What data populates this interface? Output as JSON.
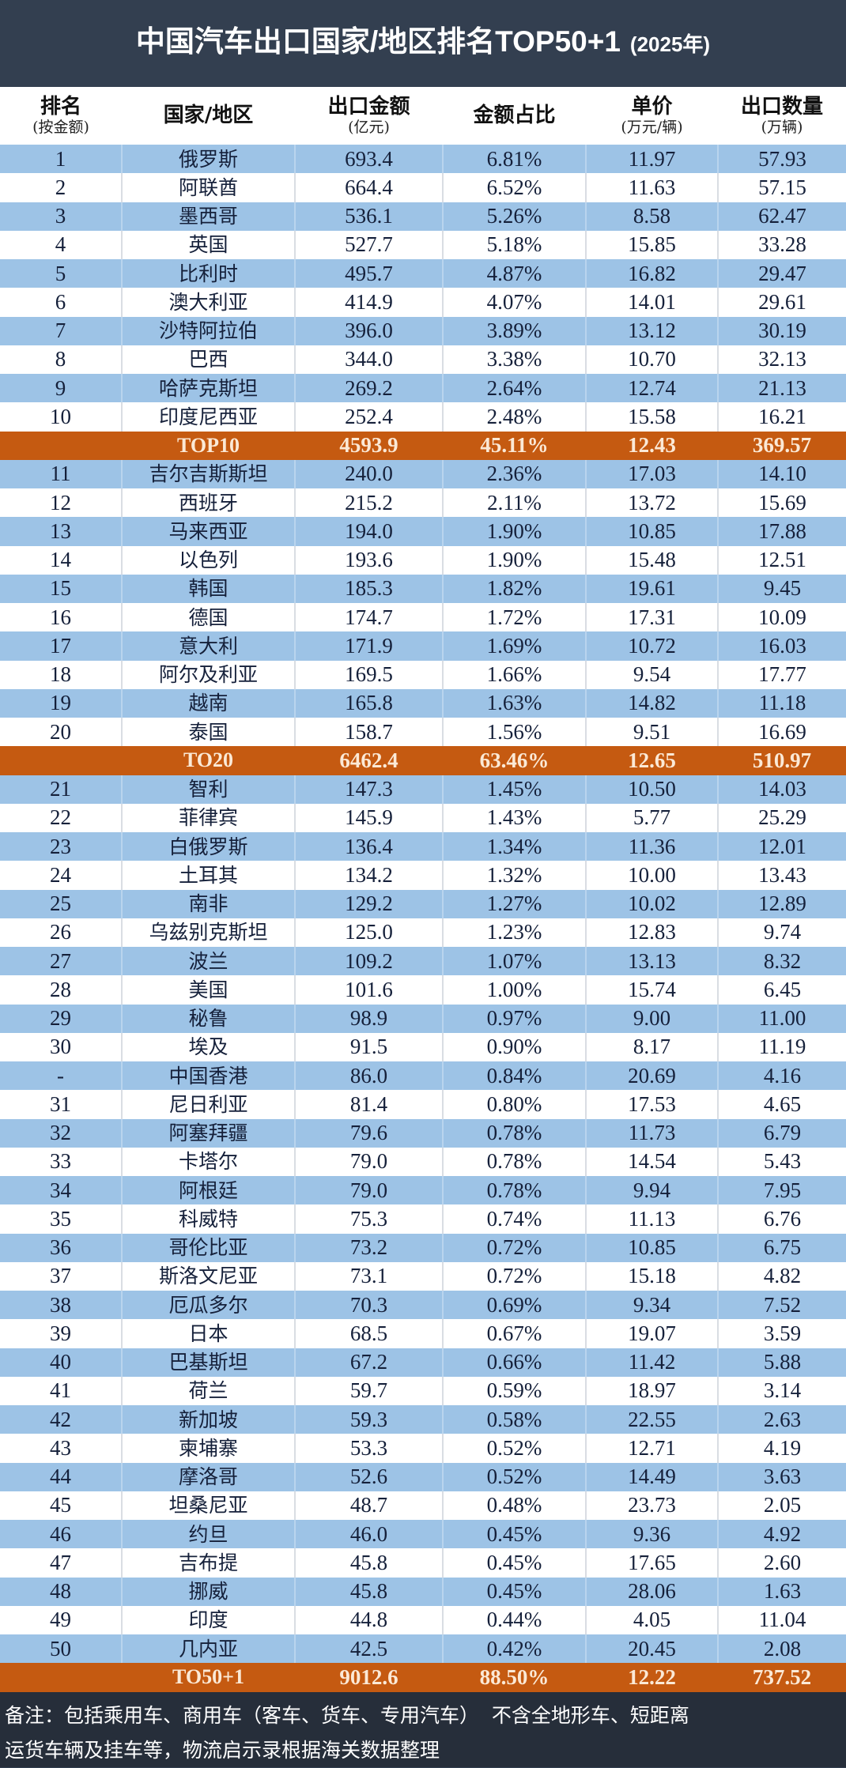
{
  "title": "中国汽车出口国家/地区排名TOP50+1",
  "title_year": "(2025年)",
  "colors": {
    "header_band": "#333f50",
    "row_blue": "#9dc3e6",
    "row_white": "#ffffff",
    "summary_orange": "#c55a11",
    "footer": "#262e3a"
  },
  "columns": [
    {
      "label": "排名",
      "sub": "(按金额)"
    },
    {
      "label": "国家/地区",
      "sub": ""
    },
    {
      "label": "出口金额",
      "sub": "(亿元)"
    },
    {
      "label": "金额占比",
      "sub": ""
    },
    {
      "label": "单价",
      "sub": "(万元/辆)"
    },
    {
      "label": "出口数量",
      "sub": "(万辆)"
    }
  ],
  "rows": [
    {
      "rank": "1",
      "name": "俄罗斯",
      "amount": "693.4",
      "share": "6.81%",
      "price": "11.97",
      "qty": "57.93"
    },
    {
      "rank": "2",
      "name": "阿联酋",
      "amount": "664.4",
      "share": "6.52%",
      "price": "11.63",
      "qty": "57.15"
    },
    {
      "rank": "3",
      "name": "墨西哥",
      "amount": "536.1",
      "share": "5.26%",
      "price": "8.58",
      "qty": "62.47"
    },
    {
      "rank": "4",
      "name": "英国",
      "amount": "527.7",
      "share": "5.18%",
      "price": "15.85",
      "qty": "33.28"
    },
    {
      "rank": "5",
      "name": "比利时",
      "amount": "495.7",
      "share": "4.87%",
      "price": "16.82",
      "qty": "29.47"
    },
    {
      "rank": "6",
      "name": "澳大利亚",
      "amount": "414.9",
      "share": "4.07%",
      "price": "14.01",
      "qty": "29.61"
    },
    {
      "rank": "7",
      "name": "沙特阿拉伯",
      "amount": "396.0",
      "share": "3.89%",
      "price": "13.12",
      "qty": "30.19"
    },
    {
      "rank": "8",
      "name": "巴西",
      "amount": "344.0",
      "share": "3.38%",
      "price": "10.70",
      "qty": "32.13"
    },
    {
      "rank": "9",
      "name": "哈萨克斯坦",
      "amount": "269.2",
      "share": "2.64%",
      "price": "12.74",
      "qty": "21.13"
    },
    {
      "rank": "10",
      "name": "印度尼西亚",
      "amount": "252.4",
      "share": "2.48%",
      "price": "15.58",
      "qty": "16.21"
    },
    {
      "summary": true,
      "rank": "",
      "name": "TOP10",
      "amount": "4593.9",
      "share": "45.11%",
      "price": "12.43",
      "qty": "369.57"
    },
    {
      "rank": "11",
      "name": "吉尔吉斯斯坦",
      "amount": "240.0",
      "share": "2.36%",
      "price": "17.03",
      "qty": "14.10"
    },
    {
      "rank": "12",
      "name": "西班牙",
      "amount": "215.2",
      "share": "2.11%",
      "price": "13.72",
      "qty": "15.69"
    },
    {
      "rank": "13",
      "name": "马来西亚",
      "amount": "194.0",
      "share": "1.90%",
      "price": "10.85",
      "qty": "17.88"
    },
    {
      "rank": "14",
      "name": "以色列",
      "amount": "193.6",
      "share": "1.90%",
      "price": "15.48",
      "qty": "12.51"
    },
    {
      "rank": "15",
      "name": "韩国",
      "amount": "185.3",
      "share": "1.82%",
      "price": "19.61",
      "qty": "9.45"
    },
    {
      "rank": "16",
      "name": "德国",
      "amount": "174.7",
      "share": "1.72%",
      "price": "17.31",
      "qty": "10.09"
    },
    {
      "rank": "17",
      "name": "意大利",
      "amount": "171.9",
      "share": "1.69%",
      "price": "10.72",
      "qty": "16.03"
    },
    {
      "rank": "18",
      "name": "阿尔及利亚",
      "amount": "169.5",
      "share": "1.66%",
      "price": "9.54",
      "qty": "17.77"
    },
    {
      "rank": "19",
      "name": "越南",
      "amount": "165.8",
      "share": "1.63%",
      "price": "14.82",
      "qty": "11.18"
    },
    {
      "rank": "20",
      "name": "泰国",
      "amount": "158.7",
      "share": "1.56%",
      "price": "9.51",
      "qty": "16.69"
    },
    {
      "summary": true,
      "rank": "",
      "name": "TO20",
      "amount": "6462.4",
      "share": "63.46%",
      "price": "12.65",
      "qty": "510.97"
    },
    {
      "rank": "21",
      "name": "智利",
      "amount": "147.3",
      "share": "1.45%",
      "price": "10.50",
      "qty": "14.03"
    },
    {
      "rank": "22",
      "name": "菲律宾",
      "amount": "145.9",
      "share": "1.43%",
      "price": "5.77",
      "qty": "25.29"
    },
    {
      "rank": "23",
      "name": "白俄罗斯",
      "amount": "136.4",
      "share": "1.34%",
      "price": "11.36",
      "qty": "12.01"
    },
    {
      "rank": "24",
      "name": "土耳其",
      "amount": "134.2",
      "share": "1.32%",
      "price": "10.00",
      "qty": "13.43"
    },
    {
      "rank": "25",
      "name": "南非",
      "amount": "129.2",
      "share": "1.27%",
      "price": "10.02",
      "qty": "12.89"
    },
    {
      "rank": "26",
      "name": "乌兹别克斯坦",
      "amount": "125.0",
      "share": "1.23%",
      "price": "12.83",
      "qty": "9.74"
    },
    {
      "rank": "27",
      "name": "波兰",
      "amount": "109.2",
      "share": "1.07%",
      "price": "13.13",
      "qty": "8.32"
    },
    {
      "rank": "28",
      "name": "美国",
      "amount": "101.6",
      "share": "1.00%",
      "price": "15.74",
      "qty": "6.45"
    },
    {
      "rank": "29",
      "name": "秘鲁",
      "amount": "98.9",
      "share": "0.97%",
      "price": "9.00",
      "qty": "11.00"
    },
    {
      "rank": "30",
      "name": "埃及",
      "amount": "91.5",
      "share": "0.90%",
      "price": "8.17",
      "qty": "11.19"
    },
    {
      "rank": "-",
      "name": "中国香港",
      "amount": "86.0",
      "share": "0.84%",
      "price": "20.69",
      "qty": "4.16"
    },
    {
      "rank": "31",
      "name": "尼日利亚",
      "amount": "81.4",
      "share": "0.80%",
      "price": "17.53",
      "qty": "4.65"
    },
    {
      "rank": "32",
      "name": "阿塞拜疆",
      "amount": "79.6",
      "share": "0.78%",
      "price": "11.73",
      "qty": "6.79"
    },
    {
      "rank": "33",
      "name": "卡塔尔",
      "amount": "79.0",
      "share": "0.78%",
      "price": "14.54",
      "qty": "5.43"
    },
    {
      "rank": "34",
      "name": "阿根廷",
      "amount": "79.0",
      "share": "0.78%",
      "price": "9.94",
      "qty": "7.95"
    },
    {
      "rank": "35",
      "name": "科威特",
      "amount": "75.3",
      "share": "0.74%",
      "price": "11.13",
      "qty": "6.76"
    },
    {
      "rank": "36",
      "name": "哥伦比亚",
      "amount": "73.2",
      "share": "0.72%",
      "price": "10.85",
      "qty": "6.75"
    },
    {
      "rank": "37",
      "name": "斯洛文尼亚",
      "amount": "73.1",
      "share": "0.72%",
      "price": "15.18",
      "qty": "4.82"
    },
    {
      "rank": "38",
      "name": "厄瓜多尔",
      "amount": "70.3",
      "share": "0.69%",
      "price": "9.34",
      "qty": "7.52"
    },
    {
      "rank": "39",
      "name": "日本",
      "amount": "68.5",
      "share": "0.67%",
      "price": "19.07",
      "qty": "3.59"
    },
    {
      "rank": "40",
      "name": "巴基斯坦",
      "amount": "67.2",
      "share": "0.66%",
      "price": "11.42",
      "qty": "5.88"
    },
    {
      "rank": "41",
      "name": "荷兰",
      "amount": "59.7",
      "share": "0.59%",
      "price": "18.97",
      "qty": "3.14"
    },
    {
      "rank": "42",
      "name": "新加坡",
      "amount": "59.3",
      "share": "0.58%",
      "price": "22.55",
      "qty": "2.63"
    },
    {
      "rank": "43",
      "name": "柬埔寨",
      "amount": "53.3",
      "share": "0.52%",
      "price": "12.71",
      "qty": "4.19"
    },
    {
      "rank": "44",
      "name": "摩洛哥",
      "amount": "52.6",
      "share": "0.52%",
      "price": "14.49",
      "qty": "3.63"
    },
    {
      "rank": "45",
      "name": "坦桑尼亚",
      "amount": "48.7",
      "share": "0.48%",
      "price": "23.73",
      "qty": "2.05"
    },
    {
      "rank": "46",
      "name": "约旦",
      "amount": "46.0",
      "share": "0.45%",
      "price": "9.36",
      "qty": "4.92"
    },
    {
      "rank": "47",
      "name": "吉布提",
      "amount": "45.8",
      "share": "0.45%",
      "price": "17.65",
      "qty": "2.60"
    },
    {
      "rank": "48",
      "name": "挪威",
      "amount": "45.8",
      "share": "0.45%",
      "price": "28.06",
      "qty": "1.63"
    },
    {
      "rank": "49",
      "name": "印度",
      "amount": "44.8",
      "share": "0.44%",
      "price": "4.05",
      "qty": "11.04"
    },
    {
      "rank": "50",
      "name": "几内亚",
      "amount": "42.5",
      "share": "0.42%",
      "price": "20.45",
      "qty": "2.08"
    },
    {
      "summary": true,
      "rank": "",
      "name": "TO50+1",
      "amount": "9012.6",
      "share": "88.50%",
      "price": "12.22",
      "qty": "737.52"
    }
  ],
  "footer": {
    "line1": "备注：包括乘用车、商用车（客车、货车、专用汽车）  不含全地形车、短距离",
    "line2": "运货车辆及挂车等，物流启示录根据海关数据整理"
  }
}
